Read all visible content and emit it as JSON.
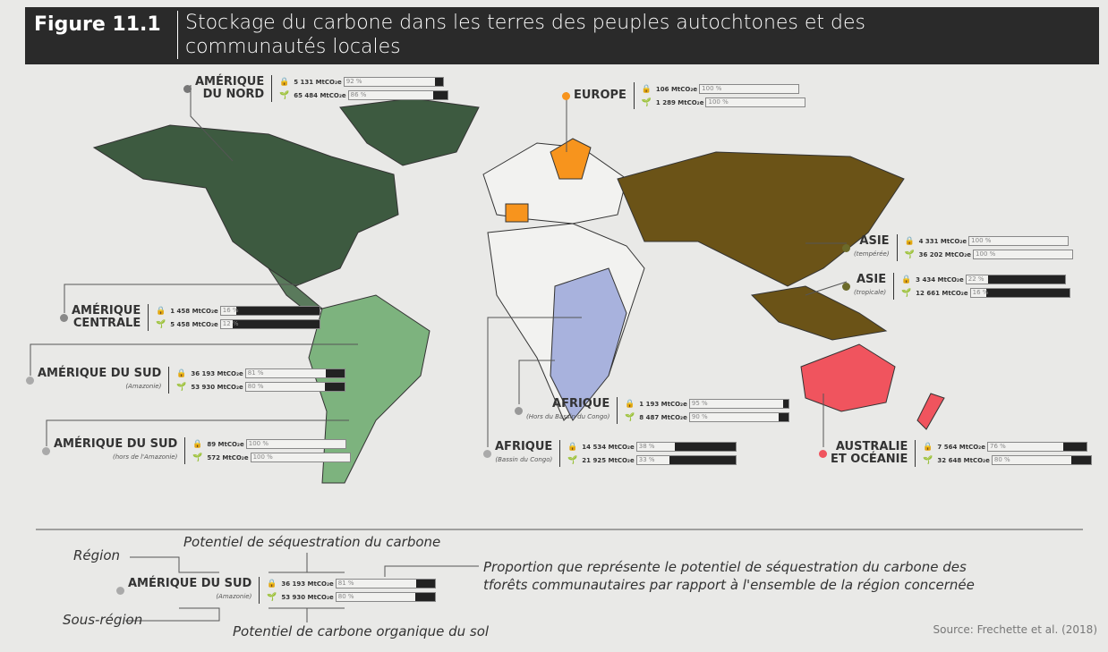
{
  "header": {
    "figure": "Figure 11.1",
    "title": "Stockage du carbone dans les terres des peuples autochtones et des\ncommunautés locales"
  },
  "regions": [
    {
      "name": "AMÉRIQUE\nDU NORD",
      "rows": [
        {
          "value": "5 131 MtCO₂e",
          "percent": 92,
          "percent_label": "92 %"
        },
        {
          "value": "65 484 MtCO₂e",
          "percent": 86,
          "percent_label": "86 %"
        }
      ]
    },
    {
      "name": "EUROPE",
      "rows": [
        {
          "value": "106 MtCO₂e",
          "percent": 100,
          "percent_label": "100 %"
        },
        {
          "value": "1 289 MtCO₂e",
          "percent": 100,
          "percent_label": "100 %"
        }
      ]
    },
    {
      "name": "ASIE",
      "sub": "(tempérée)",
      "rows": [
        {
          "value": "4 331 MtCO₂e",
          "percent": 100,
          "percent_label": "100 %"
        },
        {
          "value": "36 202 MtCO₂e",
          "percent": 100,
          "percent_label": "100 %"
        }
      ]
    },
    {
      "name": "ASIE",
      "sub": "(tropicale)",
      "rows": [
        {
          "value": "3 434 MtCO₂e",
          "percent": 22,
          "percent_label": "22 %"
        },
        {
          "value": "12 661 MtCO₂e",
          "percent": 16,
          "percent_label": "16 %"
        }
      ]
    },
    {
      "name": "AMÉRIQUE\nCENTRALE",
      "rows": [
        {
          "value": "1 458 MtCO₂e",
          "percent": 16,
          "percent_label": "16 %"
        },
        {
          "value": "5 458 MtCO₂e",
          "percent": 12,
          "percent_label": "12 %"
        }
      ]
    },
    {
      "name": "AMÉRIQUE DU SUD",
      "sub": "(Amazonie)",
      "rows": [
        {
          "value": "36 193 MtCO₂e",
          "percent": 81,
          "percent_label": "81 %"
        },
        {
          "value": "53 930 MtCO₂e",
          "percent": 80,
          "percent_label": "80 %"
        }
      ]
    },
    {
      "name": "AFRIQUE",
      "sub": "(Hors du Bassin du Congo)",
      "rows": [
        {
          "value": "1 193 MtCO₂e",
          "percent": 95,
          "percent_label": "95 %"
        },
        {
          "value": "8 487 MtCO₂e",
          "percent": 90,
          "percent_label": "90 %"
        }
      ]
    },
    {
      "name": "AMÉRIQUE DU SUD",
      "sub": "(hors de l'Amazonie)",
      "rows": [
        {
          "value": "89 MtCO₂e",
          "percent": 100,
          "percent_label": "100 %"
        },
        {
          "value": "572 MtCO₂e",
          "percent": 100,
          "percent_label": "100 %"
        }
      ]
    },
    {
      "name": "AFRIQUE",
      "sub": "(Bassin du Congo)",
      "rows": [
        {
          "value": "14 534 MtCO₂e",
          "percent": 38,
          "percent_label": "38 %"
        },
        {
          "value": "21 925 MtCO₂e",
          "percent": 33,
          "percent_label": "33 %"
        }
      ]
    },
    {
      "name": "AUSTRALIE\nET OCÉANIE",
      "rows": [
        {
          "value": "7 564 MtCO₂e",
          "percent": 76,
          "percent_label": "76 %"
        },
        {
          "value": "32 648 MtCO₂e",
          "percent": 80,
          "percent_label": "80 %"
        }
      ]
    }
  ],
  "legend": {
    "region_label": "Région",
    "subregion_label": "Sous-région",
    "sequestration_label": "Potentiel de séquestration du carbone",
    "soil_label": "Potentiel de carbone organique du sol",
    "proportion_label": "Proportion que représente le potentiel de séquestration du carbone des\ntforêts communautaires par rapport à l'ensemble de la région concernée",
    "example": {
      "name": "AMÉRIQUE DU SUD",
      "sub": "(Amazonie)",
      "rows": [
        {
          "value": "36 193 MtCO₂e",
          "percent": 81,
          "percent_label": "81 %"
        },
        {
          "value": "53 930 MtCO₂e",
          "percent": 80,
          "percent_label": "80 %"
        }
      ]
    }
  },
  "source": "Source: Frechette et al. (2018)"
}
